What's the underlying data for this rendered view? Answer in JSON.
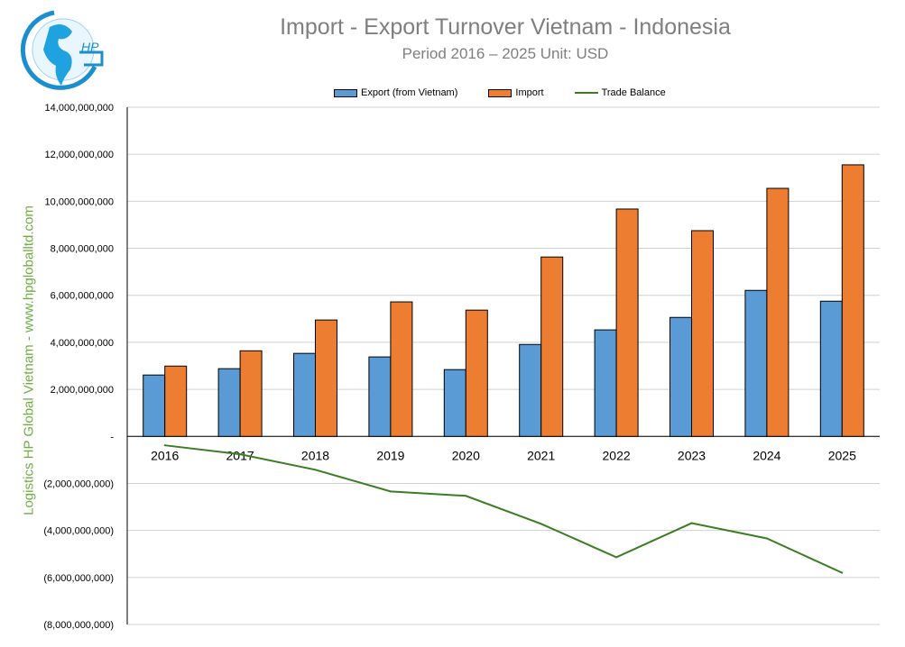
{
  "logo_text": "HP",
  "side_text": "Logistics HP Global Vietnam - www.hpgloballtd.com",
  "chart_data": {
    "type": "bar",
    "title": "Import - Export Turnover Vietnam - Indonesia",
    "subtitle": "Period 2016 – 2025  Unit: USD",
    "categories": [
      "2016",
      "2017",
      "2018",
      "2019",
      "2020",
      "2021",
      "2022",
      "2023",
      "2024",
      "2025"
    ],
    "series": [
      {
        "name": "Export (from Vietnam)",
        "type": "bar",
        "color": "#5b9bd5",
        "values": [
          2610000000,
          2880000000,
          3530000000,
          3380000000,
          2840000000,
          3910000000,
          4530000000,
          5060000000,
          6210000000,
          5750000000
        ]
      },
      {
        "name": "Import",
        "type": "bar",
        "color": "#ed7d31",
        "values": [
          2990000000,
          3640000000,
          4950000000,
          5720000000,
          5370000000,
          7630000000,
          9670000000,
          8750000000,
          10550000000,
          11550000000
        ]
      },
      {
        "name": "Trade Balance",
        "type": "line",
        "color": "#3a7d22",
        "values": [
          -380000000,
          -760000000,
          -1420000000,
          -2340000000,
          -2530000000,
          -3720000000,
          -5140000000,
          -3690000000,
          -4340000000,
          -5800000000
        ]
      }
    ],
    "ylim": [
      -8000000000,
      14000000000
    ],
    "yticks": [
      14000000000,
      12000000000,
      10000000000,
      8000000000,
      6000000000,
      4000000000,
      2000000000,
      0,
      -2000000000,
      -4000000000,
      -6000000000,
      -8000000000
    ],
    "ytick_labels": [
      "14,000,000,000",
      "12,000,000,000",
      "10,000,000,000",
      "8,000,000,000",
      "6,000,000,000",
      "4,000,000,000",
      "2,000,000,000",
      "-",
      "(2,000,000,000)",
      "(4,000,000,000)",
      "(6,000,000,000)",
      "(8,000,000,000)"
    ],
    "grid": true,
    "legend": "top"
  }
}
